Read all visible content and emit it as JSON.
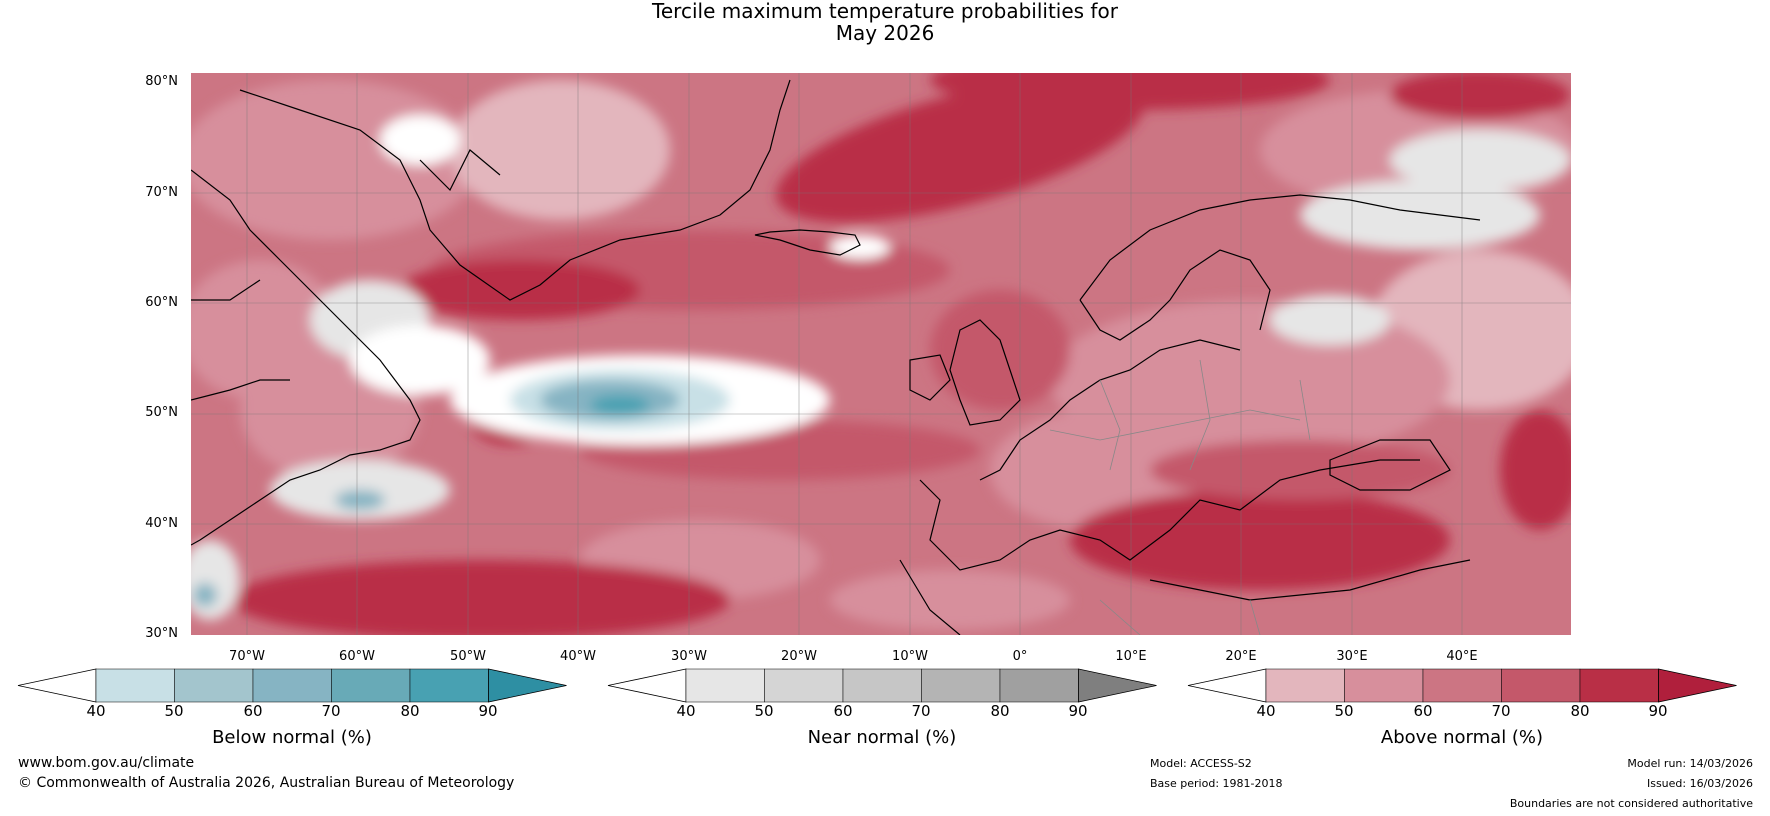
{
  "title_line1": "Tercile maximum temperature probabilities for",
  "title_line2": "May 2026",
  "lat_labels": [
    "80°N",
    "70°N",
    "60°N",
    "50°N",
    "40°N",
    "30°N"
  ],
  "lon_labels": [
    "70°W",
    "60°W",
    "50°W",
    "40°W",
    "30°W",
    "20°W",
    "10°W",
    "0°",
    "10°E",
    "20°E",
    "30°E",
    "40°E"
  ],
  "colorbars": [
    {
      "label": "Below normal (%)",
      "ticks": [
        "40",
        "50",
        "60",
        "70",
        "80",
        "90"
      ],
      "colors": [
        "#ffffff",
        "#c8e0e6",
        "#a3c5cd",
        "#86b4c3",
        "#68aab7",
        "#48a1b2",
        "#2e8fa3"
      ]
    },
    {
      "label": "Near normal (%)",
      "ticks": [
        "40",
        "50",
        "60",
        "70",
        "80",
        "90"
      ],
      "colors": [
        "#ffffff",
        "#e6e6e6",
        "#d5d5d5",
        "#c6c6c6",
        "#b4b4b4",
        "#a0a0a0",
        "#7f7f7f"
      ]
    },
    {
      "label": "Above normal (%)",
      "ticks": [
        "40",
        "50",
        "60",
        "70",
        "80",
        "90"
      ],
      "colors": [
        "#ffffff",
        "#e3b6bd",
        "#d78f9c",
        "#cc7583",
        "#c4586a",
        "#b92f46",
        "#b01f3c"
      ]
    }
  ],
  "footer": {
    "url": "www.bom.gov.au/climate",
    "copyright": "© Commonwealth of Australia 2026, Australian Bureau of Meteorology",
    "model": "Model: ACCESS-S2",
    "base_period": "Base period: 1981-2018",
    "model_run": "Model run: 14/03/2026",
    "issued": "Issued: 16/03/2026",
    "disclaimer": "Boundaries are not considered authoritative"
  }
}
